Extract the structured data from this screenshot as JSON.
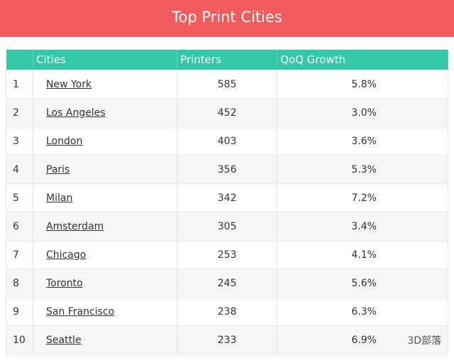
{
  "header": {
    "title": "Top Print Cities"
  },
  "table": {
    "columns": [
      "Cities",
      "Printers",
      "QoQ Growth"
    ],
    "rows": [
      [
        1,
        "New York",
        585,
        "5.8%"
      ],
      [
        2,
        "Los Angeles",
        452,
        "3.0%"
      ],
      [
        3,
        "London",
        403,
        "3.6%"
      ],
      [
        4,
        "Paris",
        356,
        "5.3%"
      ],
      [
        5,
        "Milan",
        342,
        "7.2%"
      ],
      [
        6,
        "Amsterdam",
        305,
        "3.4%"
      ],
      [
        7,
        "Chicago",
        253,
        "4.1%"
      ],
      [
        8,
        "Toronto",
        245,
        "5.6%"
      ],
      [
        9,
        "San Francisco",
        238,
        "6.3%"
      ],
      [
        10,
        "Seattle",
        233,
        "6.9%"
      ]
    ]
  },
  "watermark": "3D部落"
}
